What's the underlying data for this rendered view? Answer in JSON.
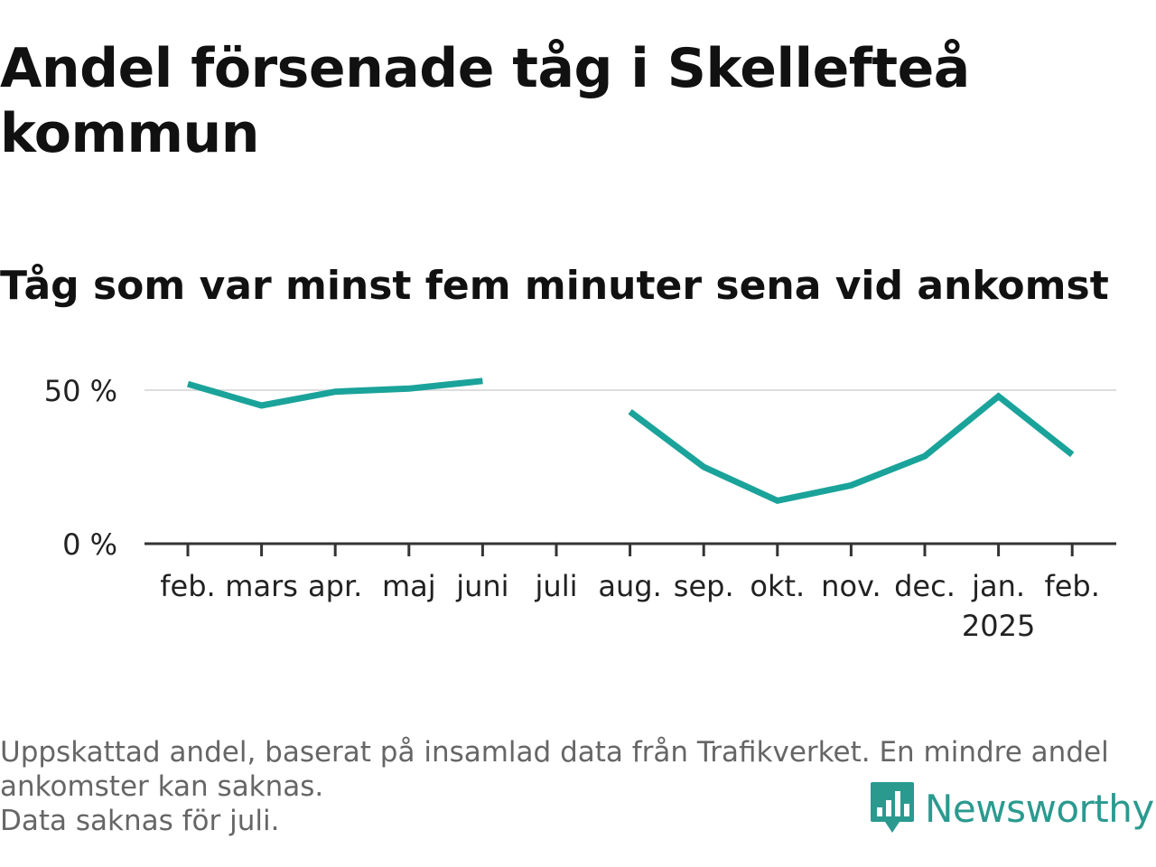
{
  "title": "Andel försenade tåg i Skellefteå kommun",
  "subtitle": "Tåg som var minst fem minuter sena vid ankomst",
  "footnote": {
    "line1": "Uppskattad andel, baserat på insamlad data från Trafikverket. En mindre andel ankomster kan saknas.",
    "line2": "Data saknas för juli."
  },
  "brand": {
    "name": "Newsworthy",
    "icon": "newsworthy-logo-icon",
    "color": "#2a9a8f"
  },
  "chart_data": {
    "type": "line",
    "title": "Andel försenade tåg i Skellefteå kommun",
    "subtitle": "Tåg som var minst fem minuter sena vid ankomst",
    "xlabel": "",
    "ylabel": "",
    "categories": [
      "feb.",
      "mars",
      "apr.",
      "maj",
      "juni",
      "juli",
      "aug.",
      "sep.",
      "okt.",
      "nov.",
      "dec.",
      "jan.",
      "feb."
    ],
    "year_label": {
      "category_index": 11,
      "text": "2025"
    },
    "series": [
      {
        "name": "",
        "color": "#1aa39a",
        "values": [
          52,
          45,
          49.5,
          50.5,
          53,
          null,
          43,
          25,
          14,
          19,
          28.5,
          48,
          29
        ]
      }
    ],
    "yticks": [
      0,
      50
    ],
    "ytick_labels": [
      "0 %",
      "50 %"
    ],
    "ylim": [
      0,
      50
    ],
    "grid": true,
    "legend": "none",
    "missing_note": "Data saknas för juli."
  }
}
